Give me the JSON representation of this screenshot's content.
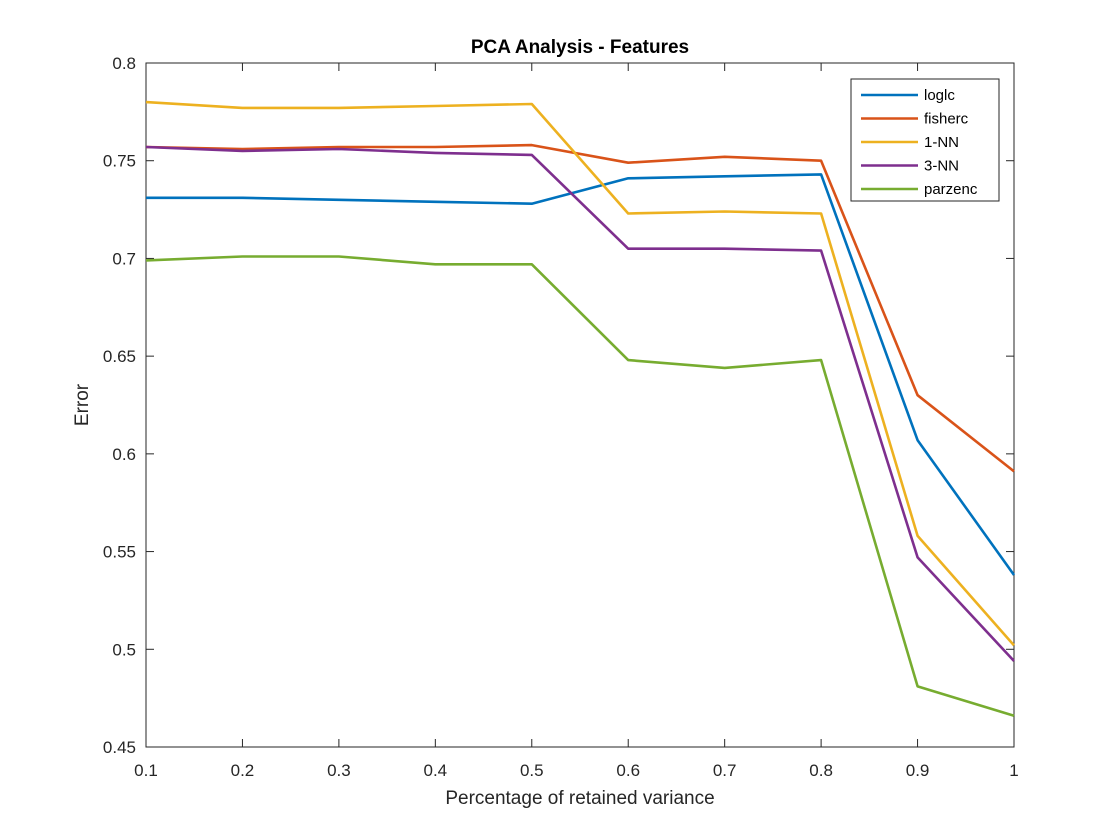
{
  "chart_data": {
    "type": "line",
    "title": "PCA Analysis - Features",
    "xlabel": "Percentage of retained variance",
    "ylabel": "Error",
    "xlim": [
      0.1,
      1
    ],
    "ylim": [
      0.45,
      0.8
    ],
    "x": [
      0.1,
      0.2,
      0.3,
      0.4,
      0.5,
      0.6,
      0.7,
      0.8,
      0.9,
      1.0
    ],
    "xticks": [
      "0.1",
      "0.2",
      "0.3",
      "0.4",
      "0.5",
      "0.6",
      "0.7",
      "0.8",
      "0.9",
      "1"
    ],
    "yticks": [
      "0.45",
      "0.5",
      "0.55",
      "0.6",
      "0.65",
      "0.7",
      "0.75",
      "0.8"
    ],
    "grid": false,
    "legend_position": "top-right",
    "series": [
      {
        "name": "loglc",
        "color": "#0072BD",
        "values": [
          0.731,
          0.731,
          0.73,
          0.729,
          0.728,
          0.741,
          0.742,
          0.743,
          0.607,
          0.538
        ]
      },
      {
        "name": "fisherc",
        "color": "#D95319",
        "values": [
          0.757,
          0.756,
          0.757,
          0.757,
          0.758,
          0.749,
          0.752,
          0.75,
          0.63,
          0.591
        ]
      },
      {
        "name": "1-NN",
        "color": "#EDB120",
        "values": [
          0.78,
          0.777,
          0.777,
          0.778,
          0.779,
          0.723,
          0.724,
          0.723,
          0.558,
          0.502
        ]
      },
      {
        "name": "3-NN",
        "color": "#7E2F8E",
        "values": [
          0.757,
          0.755,
          0.756,
          0.754,
          0.753,
          0.705,
          0.705,
          0.704,
          0.547,
          0.494
        ]
      },
      {
        "name": "parzenc",
        "color": "#77AC30",
        "values": [
          0.699,
          0.701,
          0.701,
          0.697,
          0.697,
          0.648,
          0.644,
          0.648,
          0.481,
          0.466
        ]
      }
    ]
  }
}
